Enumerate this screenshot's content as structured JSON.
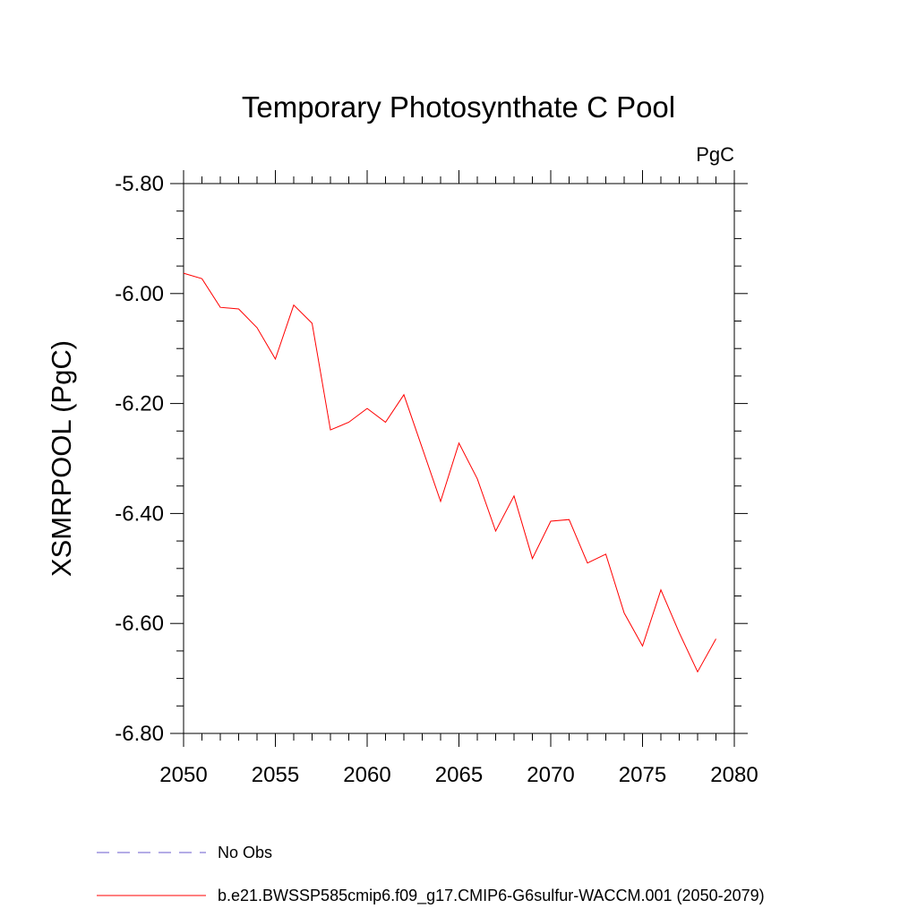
{
  "chart_data": {
    "type": "line",
    "title": "Temporary Photosynthate C Pool",
    "units": "PgC",
    "xlabel": "",
    "ylabel": "XSMRPOOL  (PgC)",
    "xlim": [
      2050,
      2080
    ],
    "ylim": [
      -6.8,
      -5.8
    ],
    "xticks": [
      "2050",
      "2055",
      "2060",
      "2065",
      "2070",
      "2075",
      "2080"
    ],
    "yticks": [
      "-5.80",
      "-6.00",
      "-6.20",
      "-6.40",
      "-6.60",
      "-6.80"
    ],
    "grid": false,
    "legend_position": "bottom-left",
    "series": [
      {
        "name": "b.e21.BWSSP585cmip6.f09_g17.CMIP6-G6sulfur-WACCM.001 (2050-2079)",
        "color": "#ff0000",
        "style": "solid",
        "x": [
          2050,
          2051,
          2052,
          2053,
          2054,
          2055,
          2056,
          2057,
          2058,
          2059,
          2060,
          2061,
          2062,
          2063,
          2064,
          2065,
          2066,
          2067,
          2068,
          2069,
          2070,
          2071,
          2072,
          2073,
          2074,
          2075,
          2076,
          2077,
          2078,
          2079
        ],
        "values": [
          -5.963,
          -5.973,
          -6.025,
          -6.028,
          -6.062,
          -6.119,
          -6.021,
          -6.054,
          -6.248,
          -6.234,
          -6.209,
          -6.234,
          -6.184,
          -6.281,
          -6.378,
          -6.272,
          -6.337,
          -6.432,
          -6.368,
          -6.482,
          -6.414,
          -6.411,
          -6.49,
          -6.474,
          -6.581,
          -6.641,
          -6.539,
          -6.617,
          -6.688,
          -6.628
        ]
      }
    ],
    "legend": [
      {
        "label": "No Obs",
        "color": "#6a5acd",
        "style": "dashed"
      },
      {
        "label": "b.e21.BWSSP585cmip6.f09_g17.CMIP6-G6sulfur-WACCM.001 (2050-2079)",
        "color": "#ff0000",
        "style": "solid"
      }
    ]
  }
}
